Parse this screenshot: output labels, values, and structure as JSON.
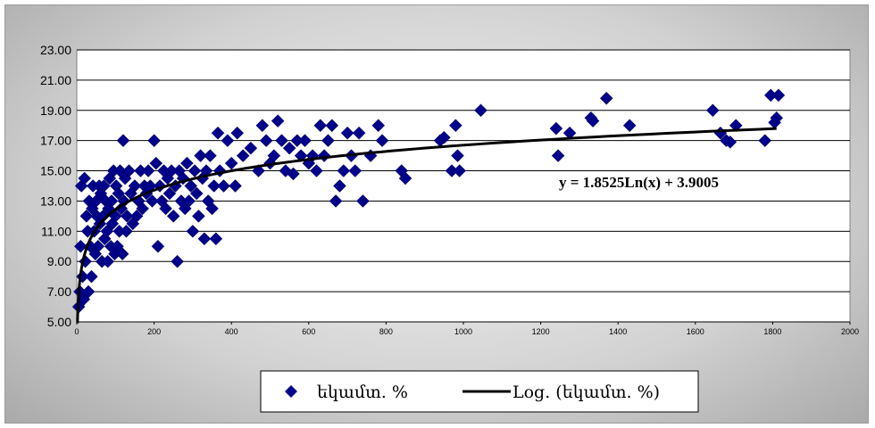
{
  "chart_data": {
    "type": "scatter",
    "title": "",
    "xlabel": "",
    "ylabel": "",
    "xlim": [
      0,
      2000
    ],
    "ylim": [
      5,
      23
    ],
    "x_ticks": [
      0,
      200,
      400,
      600,
      800,
      1000,
      1200,
      1400,
      1600,
      1800,
      2000
    ],
    "y_ticks": [
      "5.00",
      "7.00",
      "9.00",
      "11.00",
      "13.00",
      "15.00",
      "17.00",
      "19.00",
      "21.00",
      "23.00"
    ],
    "grid": "horizontal",
    "legend_position": "bottom",
    "colors": {
      "marker": "#00008b",
      "trendline": "#000000",
      "plot_bg": "#ffffff"
    },
    "series": [
      {
        "name": "եկամտ. %",
        "marker": "diamond",
        "points": [
          [
            5,
            6
          ],
          [
            8,
            7
          ],
          [
            10,
            10
          ],
          [
            12,
            14
          ],
          [
            15,
            8
          ],
          [
            18,
            6.5
          ],
          [
            20,
            14.5
          ],
          [
            22,
            9
          ],
          [
            25,
            12
          ],
          [
            28,
            11
          ],
          [
            30,
            7
          ],
          [
            32,
            13
          ],
          [
            35,
            10
          ],
          [
            38,
            8
          ],
          [
            40,
            12.5
          ],
          [
            42,
            14
          ],
          [
            45,
            11
          ],
          [
            48,
            9.5
          ],
          [
            50,
            13
          ],
          [
            52,
            12
          ],
          [
            55,
            10
          ],
          [
            58,
            14
          ],
          [
            60,
            11.5
          ],
          [
            62,
            13.5
          ],
          [
            65,
            9
          ],
          [
            68,
            12
          ],
          [
            70,
            14
          ],
          [
            72,
            10.5
          ],
          [
            75,
            13
          ],
          [
            78,
            11
          ],
          [
            80,
            9
          ],
          [
            82,
            12.5
          ],
          [
            85,
            14.5
          ],
          [
            88,
            10
          ],
          [
            90,
            13
          ],
          [
            92,
            11.5
          ],
          [
            95,
            15
          ],
          [
            98,
            9.5
          ],
          [
            100,
            12
          ],
          [
            102,
            14
          ],
          [
            105,
            10
          ],
          [
            108,
            13.5
          ],
          [
            110,
            11
          ],
          [
            112,
            15
          ],
          [
            115,
            12.5
          ],
          [
            118,
            9.5
          ],
          [
            120,
            17
          ],
          [
            122,
            13
          ],
          [
            125,
            14.5
          ],
          [
            128,
            11
          ],
          [
            130,
            12
          ],
          [
            135,
            15
          ],
          [
            140,
            13.5
          ],
          [
            145,
            11.5
          ],
          [
            150,
            14
          ],
          [
            155,
            12
          ],
          [
            160,
            13
          ],
          [
            165,
            15
          ],
          [
            170,
            12.5
          ],
          [
            175,
            14
          ],
          [
            180,
            13.5
          ],
          [
            185,
            15
          ],
          [
            190,
            14
          ],
          [
            195,
            13
          ],
          [
            200,
            17
          ],
          [
            205,
            15.5
          ],
          [
            210,
            10
          ],
          [
            215,
            14
          ],
          [
            220,
            13
          ],
          [
            225,
            15
          ],
          [
            230,
            12.5
          ],
          [
            235,
            14.5
          ],
          [
            240,
            13.5
          ],
          [
            245,
            15
          ],
          [
            250,
            12
          ],
          [
            255,
            14
          ],
          [
            260,
            9
          ],
          [
            265,
            15
          ],
          [
            270,
            13
          ],
          [
            275,
            14.5
          ],
          [
            280,
            12.5
          ],
          [
            285,
            15.5
          ],
          [
            290,
            13
          ],
          [
            295,
            14
          ],
          [
            300,
            11
          ],
          [
            305,
            15
          ],
          [
            310,
            13.5
          ],
          [
            315,
            12
          ],
          [
            320,
            16
          ],
          [
            325,
            14.5
          ],
          [
            330,
            10.5
          ],
          [
            335,
            15
          ],
          [
            340,
            13
          ],
          [
            345,
            16
          ],
          [
            350,
            12.5
          ],
          [
            355,
            14
          ],
          [
            360,
            10.5
          ],
          [
            365,
            17.5
          ],
          [
            370,
            15
          ],
          [
            380,
            14
          ],
          [
            390,
            17
          ],
          [
            400,
            15.5
          ],
          [
            410,
            14
          ],
          [
            415,
            17.5
          ],
          [
            430,
            16
          ],
          [
            450,
            16.5
          ],
          [
            470,
            15
          ],
          [
            480,
            18
          ],
          [
            490,
            17
          ],
          [
            500,
            15.5
          ],
          [
            510,
            16
          ],
          [
            520,
            18.3
          ],
          [
            530,
            17
          ],
          [
            540,
            15
          ],
          [
            550,
            16.5
          ],
          [
            560,
            14.8
          ],
          [
            570,
            17
          ],
          [
            580,
            16
          ],
          [
            590,
            17
          ],
          [
            600,
            15.5
          ],
          [
            610,
            16
          ],
          [
            620,
            15
          ],
          [
            630,
            18
          ],
          [
            640,
            16
          ],
          [
            650,
            17
          ],
          [
            660,
            18
          ],
          [
            670,
            13
          ],
          [
            680,
            14
          ],
          [
            690,
            15
          ],
          [
            700,
            17.5
          ],
          [
            710,
            16
          ],
          [
            720,
            15
          ],
          [
            730,
            17.5
          ],
          [
            740,
            13
          ],
          [
            760,
            16
          ],
          [
            780,
            18
          ],
          [
            790,
            17
          ],
          [
            840,
            15
          ],
          [
            850,
            14.5
          ],
          [
            940,
            17
          ],
          [
            950,
            17.2
          ],
          [
            970,
            15
          ],
          [
            980,
            18
          ],
          [
            985,
            16
          ],
          [
            990,
            15
          ],
          [
            1045,
            19
          ],
          [
            1240,
            17.8
          ],
          [
            1245,
            16
          ],
          [
            1275,
            17.5
          ],
          [
            1330,
            18.5
          ],
          [
            1335,
            18.3
          ],
          [
            1370,
            19.8
          ],
          [
            1430,
            18
          ],
          [
            1645,
            19
          ],
          [
            1665,
            17.5
          ],
          [
            1680,
            17
          ],
          [
            1690,
            16.9
          ],
          [
            1705,
            18
          ],
          [
            1780,
            17
          ],
          [
            1795,
            20
          ],
          [
            1805,
            18.2
          ],
          [
            1810,
            18.5
          ],
          [
            1815,
            20
          ]
        ]
      },
      {
        "name": "Log. (եկամտ. %)",
        "type": "trendline",
        "fit": "logarithmic",
        "equation": "y = 1.8525Ln(x) + 3.9005",
        "coefficients": {
          "a": 1.8525,
          "b": 3.9005
        },
        "x_range": [
          1,
          1810
        ]
      }
    ]
  }
}
